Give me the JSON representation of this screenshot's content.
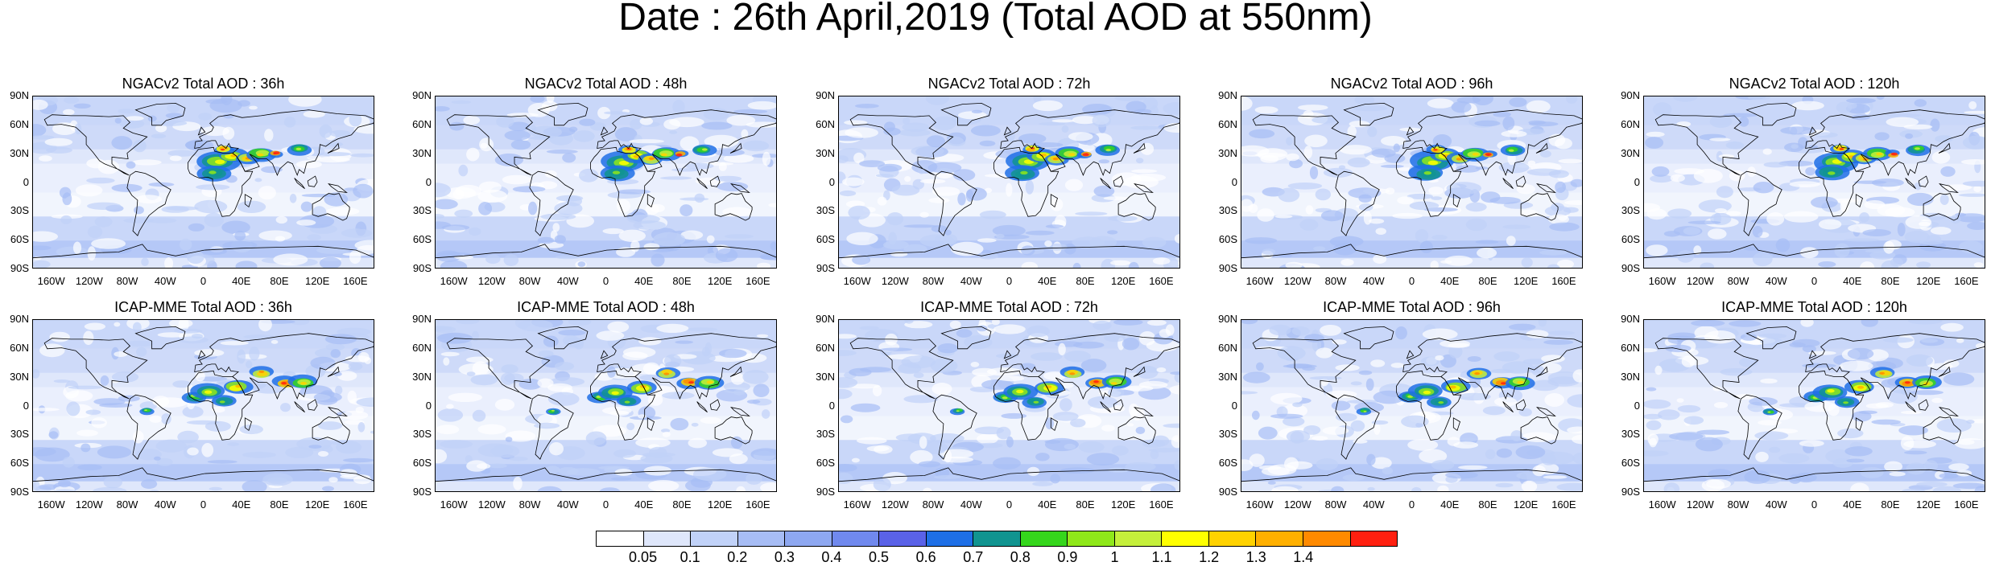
{
  "title": "Date : 26th April,2019 (Total AOD at 550nm)",
  "rows": [
    {
      "panels": [
        {
          "title": "NGACv2 Total AOD : 36h"
        },
        {
          "title": "NGACv2 Total AOD : 48h"
        },
        {
          "title": "NGACv2 Total AOD : 72h"
        },
        {
          "title": "NGACv2 Total AOD : 96h"
        },
        {
          "title": "NGACv2 Total AOD : 120h"
        }
      ]
    },
    {
      "panels": [
        {
          "title": "ICAP-MME Total AOD : 36h"
        },
        {
          "title": "ICAP-MME Total AOD : 48h"
        },
        {
          "title": "ICAP-MME Total AOD : 72h"
        },
        {
          "title": "ICAP-MME Total AOD : 96h"
        },
        {
          "title": "ICAP-MME Total AOD : 120h"
        }
      ]
    }
  ],
  "lat_ticks": [
    "90N",
    "60N",
    "30N",
    "0",
    "30S",
    "60S",
    "90S"
  ],
  "lon_ticks": [
    "160W",
    "120W",
    "80W",
    "40W",
    "0",
    "40E",
    "80E",
    "120E",
    "160E"
  ],
  "colorbar": {
    "labels": [
      "0.05",
      "0.1",
      "0.2",
      "0.3",
      "0.4",
      "0.5",
      "0.6",
      "0.7",
      "0.8",
      "0.9",
      "1",
      "1.1",
      "1.2",
      "1.3",
      "1.4"
    ],
    "colors": [
      "#ffffff",
      "#dfe7fb",
      "#c1d2f8",
      "#a7bdf5",
      "#8ea8f1",
      "#7089ee",
      "#5a62e8",
      "#1e6fe6",
      "#119490",
      "#35d61c",
      "#8fe81a",
      "#c5f03b",
      "#ffff00",
      "#ffd200",
      "#ffb000",
      "#ff8a00",
      "#ff2010"
    ]
  }
}
